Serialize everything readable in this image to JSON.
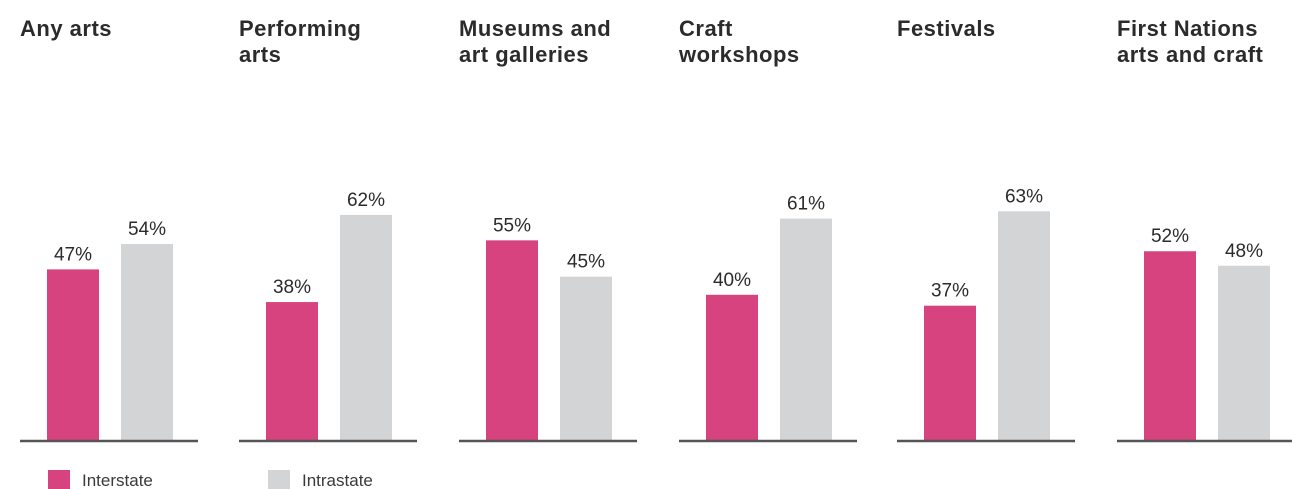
{
  "chart_data": {
    "type": "bar",
    "categories": [
      "Any arts",
      "Performing arts",
      "Museums and art galleries",
      "Craft workshops",
      "Festivals",
      "First Nations arts and craft"
    ],
    "category_display": [
      [
        "Any arts"
      ],
      [
        "Performing",
        "arts"
      ],
      [
        "Museums and",
        "art galleries"
      ],
      [
        "Craft",
        "workshops"
      ],
      [
        "Festivals"
      ],
      [
        "First Nations",
        "arts and craft"
      ]
    ],
    "series": [
      {
        "name": "Interstate",
        "values": [
          47,
          38,
          55,
          40,
          37,
          52
        ],
        "color": "#d6437f"
      },
      {
        "name": "Intrastate",
        "values": [
          54,
          62,
          45,
          61,
          63,
          48
        ],
        "color": "#d3d4d6"
      }
    ],
    "value_labels": [
      [
        "47%",
        "38%",
        "55%",
        "40%",
        "37%",
        "52%"
      ],
      [
        "54%",
        "62%",
        "45%",
        "61%",
        "63%",
        "48%"
      ]
    ],
    "unit": "%",
    "ylim": [
      0,
      100
    ],
    "grid": false,
    "legend_position": "bottom-left",
    "axis_color": "#555555"
  }
}
